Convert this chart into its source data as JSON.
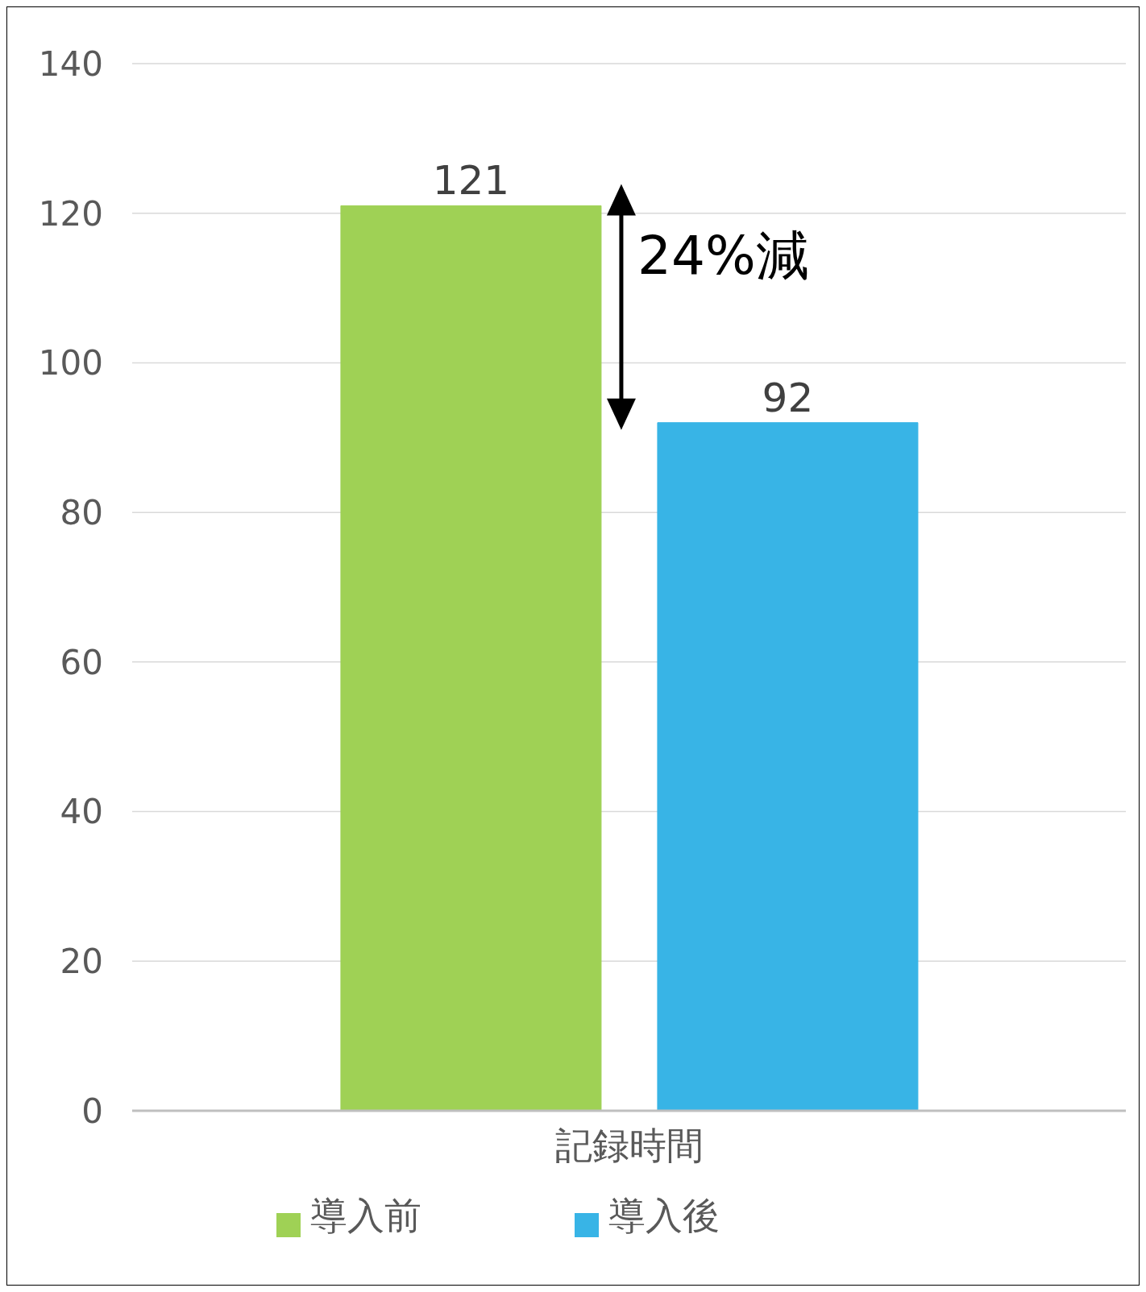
{
  "chart_data": {
    "type": "bar",
    "categories": [
      "記録時間"
    ],
    "series": [
      {
        "name": "導入前",
        "color": "#9fd155",
        "values": [
          121
        ]
      },
      {
        "name": "導入後",
        "color": "#38b4e6",
        "values": [
          92
        ]
      }
    ],
    "ylim": [
      0,
      140
    ],
    "yticks": [
      0,
      20,
      40,
      60,
      80,
      100,
      120,
      140
    ],
    "grid": "y",
    "legend": "bottom",
    "data_labels": true,
    "annotations": [
      "24%減"
    ]
  }
}
